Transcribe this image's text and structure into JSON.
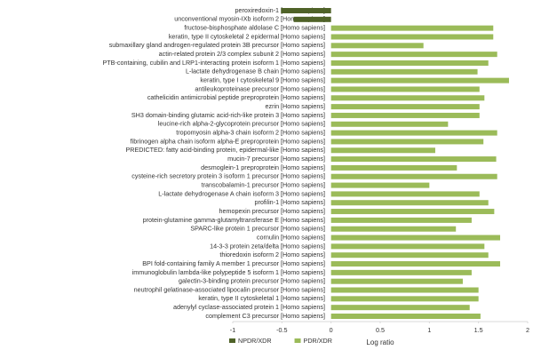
{
  "chart_data": {
    "type": "hbar",
    "categories": [
      "peroxiredoxin-1 [Homo sapiens]",
      "unconventional myosin-IXb isoform 2 [Homo sapiens]",
      "fructose-bisphosphate aldolase C [Homo sapiens]",
      "keratin, type II cytoskeletal 2 epidermal [Homo sapiens]",
      "submaxillary gland androgen-regulated protein 3B precursor [Homo sapiens]",
      "actin-related protein 2/3 complex subunit 2 [Homo sapiens]",
      "PTB-containing, cubilin and LRP1-interacting protein isoform 1 [Homo sapiens]",
      "L-lactate dehydrogenase B chain [Homo sapiens]",
      "keratin, type I cytoskeletal 9 [Homo sapiens]",
      "antileukoproteinase precursor [Homo sapiens]",
      "cathelicidin antimicrobial peptide preproprotein [Homo sapiens]",
      "ezrin [Homo sapiens]",
      "SH3 domain-binding glutamic acid-rich-like protein 3 [Homo sapiens]",
      "leucine-rich alpha-2-glycoprotein precursor [Homo sapiens]",
      "tropomyosin alpha-3 chain isoform 2 [Homo sapiens]",
      "fibrinogen alpha chain isoform alpha-E preproprotein [Homo sapiens]",
      "PREDICTED: fatty acid-binding protein, epidermal-like [Homo sapiens]",
      "mucin-7 precursor [Homo sapiens]",
      "desmoglein-1 preproprotein [Homo sapiens]",
      "cysteine-rich secretory protein 3 isoform 1 precursor [Homo sapiens]",
      "transcobalamin-1 precursor [Homo sapiens]",
      "L-lactate dehydrogenase A chain isoform 3 [Homo sapiens]",
      "profilin-1 [Homo sapiens]",
      "hemopexin precursor [Homo sapiens]",
      "protein-glutamine gamma-glutamyltransferase E [Homo sapiens]",
      "SPARC-like protein 1 precursor [Homo sapiens]",
      "cornulin [Homo sapiens]",
      "14-3-3 protein zeta/delta [Homo sapiens]",
      "thioredoxin isoform 2 [Homo sapiens]",
      "BPI fold-containing family A member 1 precursor [Homo sapiens]",
      "immunoglobulin lambda-like polypeptide 5 isoform 1 [Homo sapiens]",
      "galectin-3-binding protein precursor [Homo sapiens]",
      "neutrophil gelatinase-associated lipocalin precursor [Homo sapiens]",
      "keratin, type II cytoskeletal 1 [Homo sapiens]",
      "adenylyl cyclase-associated protein 1 [Homo sapiens]",
      "complement C3 precursor [Homo sapiens]"
    ],
    "series": [
      {
        "name": "NPDR/XDR",
        "color": "#4f6228",
        "values": [
          -0.51,
          -0.38,
          null,
          null,
          null,
          null,
          null,
          null,
          null,
          null,
          null,
          null,
          null,
          null,
          null,
          null,
          null,
          null,
          null,
          null,
          null,
          null,
          null,
          null,
          null,
          null,
          null,
          null,
          null,
          null,
          null,
          null,
          null,
          null,
          null,
          null
        ]
      },
      {
        "name": "PDR/XDR",
        "color": "#9bbb59",
        "values": [
          null,
          null,
          1.65,
          1.65,
          0.94,
          1.69,
          1.6,
          1.49,
          1.81,
          1.51,
          1.56,
          1.51,
          1.51,
          1.19,
          1.69,
          1.55,
          1.06,
          1.68,
          1.28,
          1.69,
          1.0,
          1.51,
          1.6,
          1.66,
          1.43,
          1.27,
          1.72,
          1.56,
          1.6,
          1.72,
          1.43,
          1.34,
          1.5,
          1.5,
          1.41,
          1.52
        ]
      }
    ],
    "xlabel": "Log ratio",
    "xlim": [
      -1,
      2
    ],
    "xticks": [
      -1,
      -0.5,
      0,
      0.5,
      1,
      1.5,
      2
    ],
    "legend": "bottom-left"
  }
}
